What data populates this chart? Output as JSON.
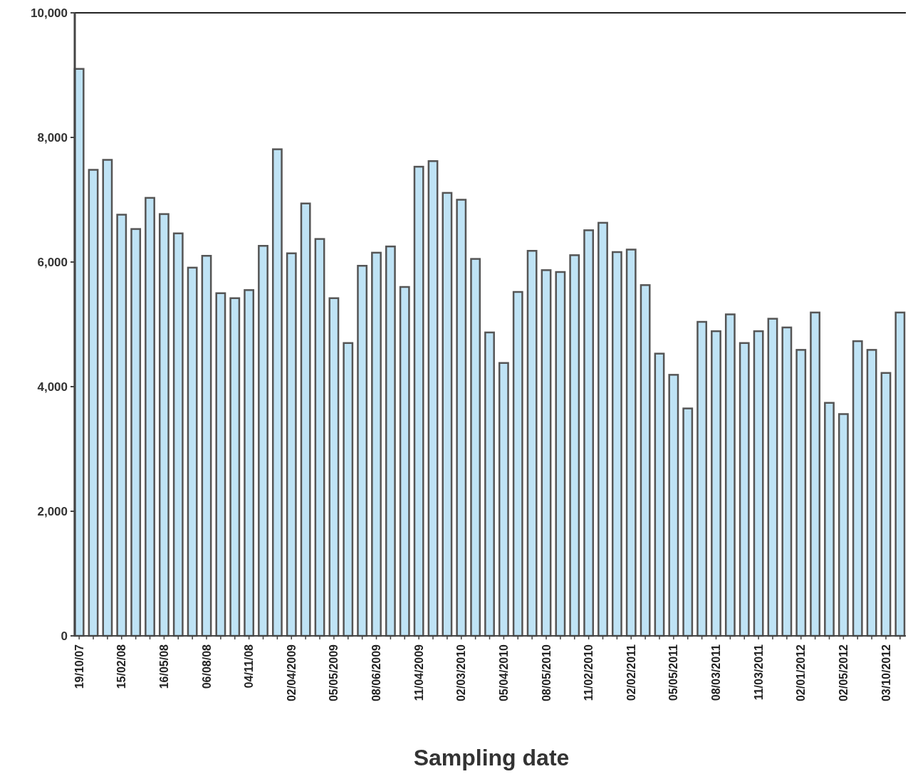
{
  "chart_data": {
    "type": "bar",
    "xlabel": "Sampling date",
    "categories": [
      "19/10/07",
      null,
      null,
      "15/02/08",
      null,
      null,
      "16/05/08",
      null,
      null,
      "06/08/08",
      null,
      null,
      "04/11/08",
      null,
      null,
      "02/04/2009",
      null,
      null,
      "05/05/2009",
      null,
      null,
      "08/06/2009",
      null,
      null,
      "11/04/2009",
      null,
      null,
      "02/03/2010",
      null,
      null,
      "05/04/2010",
      null,
      null,
      "08/05/2010",
      null,
      null,
      "11/02/2010",
      null,
      null,
      "02/02/2011",
      null,
      null,
      "05/05/2011",
      null,
      null,
      "08/03/2011",
      null,
      null,
      "11/03/2011",
      null,
      null,
      "02/01/2012",
      null,
      null,
      "02/05/2012",
      null,
      null,
      "03/10/2012",
      null
    ],
    "values": [
      9100,
      7480,
      7640,
      6760,
      6530,
      7030,
      6770,
      6460,
      5910,
      6100,
      5500,
      5420,
      5550,
      6260,
      7810,
      6140,
      6940,
      6370,
      5420,
      4700,
      5940,
      6150,
      6250,
      5600,
      7530,
      7620,
      7110,
      7000,
      6050,
      4870,
      4380,
      5520,
      6180,
      5870,
      5840,
      6110,
      6510,
      6630,
      6160,
      6200,
      5630,
      4530,
      4190,
      3650,
      5040,
      4890,
      5160,
      4700,
      4890,
      5090,
      4950,
      4590,
      5190,
      3740,
      3560,
      4730,
      4590,
      4220,
      5190
    ],
    "color": "#bfe3f5",
    "ylim": [
      0,
      10000
    ],
    "yticks": [
      0,
      {
        "value": 2000,
        "label": "2,000"
      },
      {
        "value": 4000,
        "label": "4,000"
      },
      {
        "value": 6000,
        "label": "6,000"
      },
      {
        "value": 8000,
        "label": "8,000"
      },
      {
        "value": 10000,
        "label": "10,000"
      }
    ],
    "grid": false
  }
}
